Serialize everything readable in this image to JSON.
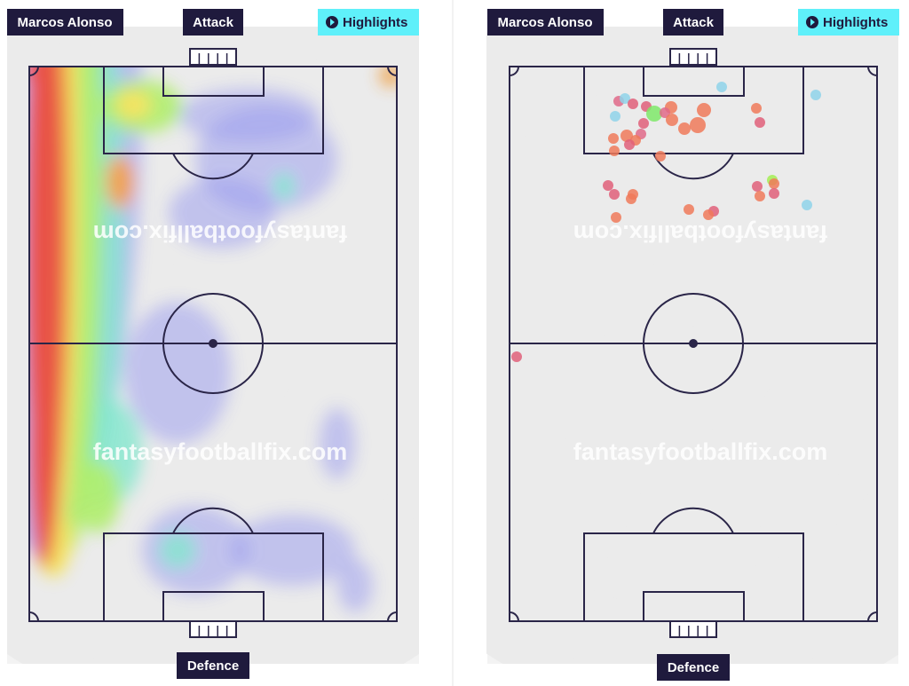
{
  "panels": [
    {
      "player": "Marcos Alonso",
      "top_label": "Attack",
      "button": "Highlights",
      "bottom_label": "Defence",
      "watermark": "fantasyfootballfix.com"
    },
    {
      "player": "Marcos Alonso",
      "top_label": "Attack",
      "button": "Highlights",
      "bottom_label": "Defence",
      "watermark": "fantasyfootballfix.com"
    }
  ]
}
